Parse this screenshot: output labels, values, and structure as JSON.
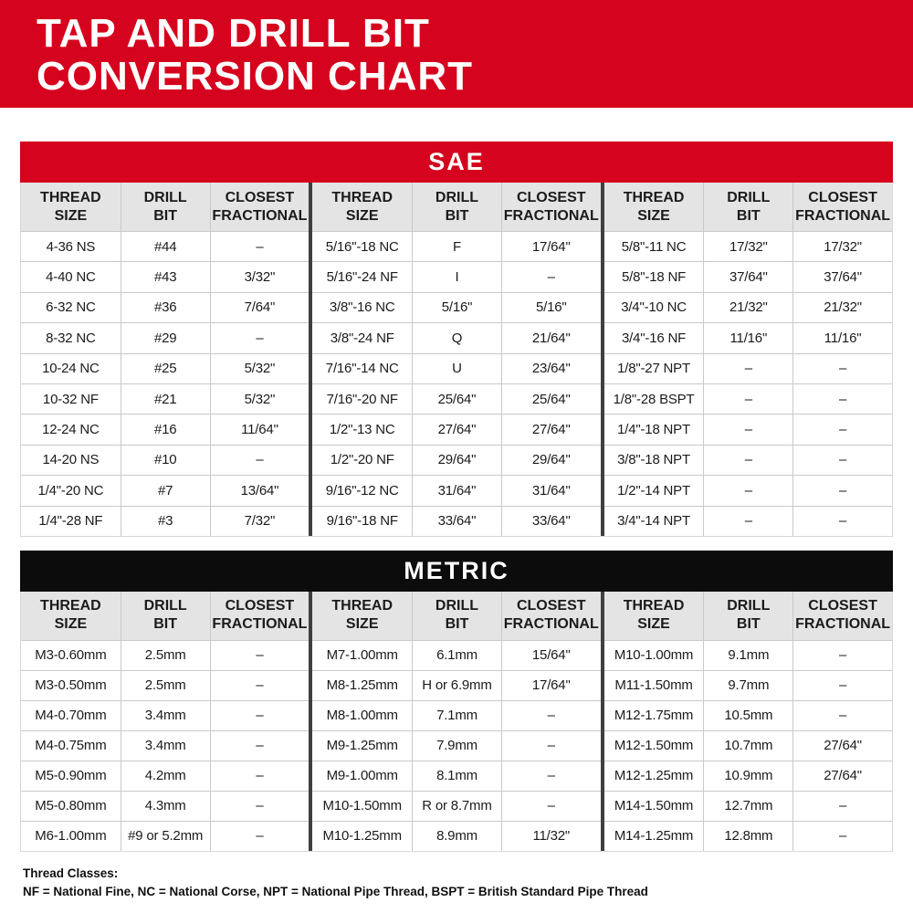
{
  "title": {
    "line1": "TAP AND DRILL BIT",
    "line2": "CONVERSION CHART"
  },
  "colors": {
    "brand_red": "#d5031d",
    "title_black": "#0c0c0c",
    "header_gray": "#e4e4e4",
    "line_gray": "#c9c9c9",
    "divider_dark": "#3f3f3f",
    "text_dark": "#1b1b1b"
  },
  "column_header_names": [
    "thread-size",
    "drill-bit",
    "closest-fractional"
  ],
  "tables": [
    {
      "title": "SAE",
      "column_headers": [
        "THREAD\nSIZE",
        "DRILL\nBIT",
        "CLOSEST\nFRACTIONAL"
      ],
      "groups": [
        {
          "rows": [
            [
              "4-36 NS",
              "#44",
              "–"
            ],
            [
              "4-40 NC",
              "#43",
              "3/32\""
            ],
            [
              "6-32 NC",
              "#36",
              "7/64\""
            ],
            [
              "8-32 NC",
              "#29",
              "–"
            ],
            [
              "10-24 NC",
              "#25",
              "5/32\""
            ],
            [
              "10-32 NF",
              "#21",
              "5/32\""
            ],
            [
              "12-24 NC",
              "#16",
              "11/64\""
            ],
            [
              "14-20 NS",
              "#10",
              "–"
            ],
            [
              "1/4\"-20 NC",
              "#7",
              "13/64\""
            ],
            [
              "1/4\"-28 NF",
              "#3",
              "7/32\""
            ]
          ]
        },
        {
          "rows": [
            [
              "5/16\"-18 NC",
              "F",
              "17/64\""
            ],
            [
              "5/16\"-24 NF",
              "I",
              "–"
            ],
            [
              "3/8\"-16 NC",
              "5/16\"",
              "5/16\""
            ],
            [
              "3/8\"-24 NF",
              "Q",
              "21/64\""
            ],
            [
              "7/16\"-14 NC",
              "U",
              "23/64\""
            ],
            [
              "7/16\"-20 NF",
              "25/64\"",
              "25/64\""
            ],
            [
              "1/2\"-13 NC",
              "27/64\"",
              "27/64\""
            ],
            [
              "1/2\"-20 NF",
              "29/64\"",
              "29/64\""
            ],
            [
              "9/16\"-12 NC",
              "31/64\"",
              "31/64\""
            ],
            [
              "9/16\"-18 NF",
              "33/64\"",
              "33/64\""
            ]
          ]
        },
        {
          "rows": [
            [
              "5/8\"-11 NC",
              "17/32\"",
              "17/32\""
            ],
            [
              "5/8\"-18 NF",
              "37/64\"",
              "37/64\""
            ],
            [
              "3/4\"-10 NC",
              "21/32\"",
              "21/32\""
            ],
            [
              "3/4\"-16 NF",
              "11/16\"",
              "11/16\""
            ],
            [
              "1/8\"-27 NPT",
              "–",
              "–"
            ],
            [
              "1/8\"-28 BSPT",
              "–",
              "–"
            ],
            [
              "1/4\"-18 NPT",
              "–",
              "–"
            ],
            [
              "3/8\"-18 NPT",
              "–",
              "–"
            ],
            [
              "1/2\"-14 NPT",
              "–",
              "–"
            ],
            [
              "3/4\"-14 NPT",
              "–",
              "–"
            ]
          ]
        }
      ]
    },
    {
      "title": "METRIC",
      "column_headers": [
        "THREAD\nSIZE",
        "DRILL\nBIT",
        "CLOSEST\nFRACTIONAL"
      ],
      "groups": [
        {
          "rows": [
            [
              "M3-0.60mm",
              "2.5mm",
              "–"
            ],
            [
              "M3-0.50mm",
              "2.5mm",
              "–"
            ],
            [
              "M4-0.70mm",
              "3.4mm",
              "–"
            ],
            [
              "M4-0.75mm",
              "3.4mm",
              "–"
            ],
            [
              "M5-0.90mm",
              "4.2mm",
              "–"
            ],
            [
              "M5-0.80mm",
              "4.3mm",
              "–"
            ],
            [
              "M6-1.00mm",
              "#9 or 5.2mm",
              "–"
            ]
          ]
        },
        {
          "rows": [
            [
              "M7-1.00mm",
              "6.1mm",
              "15/64\""
            ],
            [
              "M8-1.25mm",
              "H or 6.9mm",
              "17/64\""
            ],
            [
              "M8-1.00mm",
              "7.1mm",
              "–"
            ],
            [
              "M9-1.25mm",
              "7.9mm",
              "–"
            ],
            [
              "M9-1.00mm",
              "8.1mm",
              "–"
            ],
            [
              "M10-1.50mm",
              "R or 8.7mm",
              "–"
            ],
            [
              "M10-1.25mm",
              "8.9mm",
              "11/32\""
            ]
          ]
        },
        {
          "rows": [
            [
              "M10-1.00mm",
              "9.1mm",
              "–"
            ],
            [
              "M11-1.50mm",
              "9.7mm",
              "–"
            ],
            [
              "M12-1.75mm",
              "10.5mm",
              "–"
            ],
            [
              "M12-1.50mm",
              "10.7mm",
              "27/64\""
            ],
            [
              "M12-1.25mm",
              "10.9mm",
              "27/64\""
            ],
            [
              "M14-1.50mm",
              "12.7mm",
              "–"
            ],
            [
              "M14-1.25mm",
              "12.8mm",
              "–"
            ]
          ]
        }
      ]
    }
  ],
  "footnote": {
    "line1": "Thread Classes:",
    "line2": "NF = National Fine, NC = National Corse, NPT = National Pipe Thread, BSPT = British Standard Pipe Thread"
  }
}
